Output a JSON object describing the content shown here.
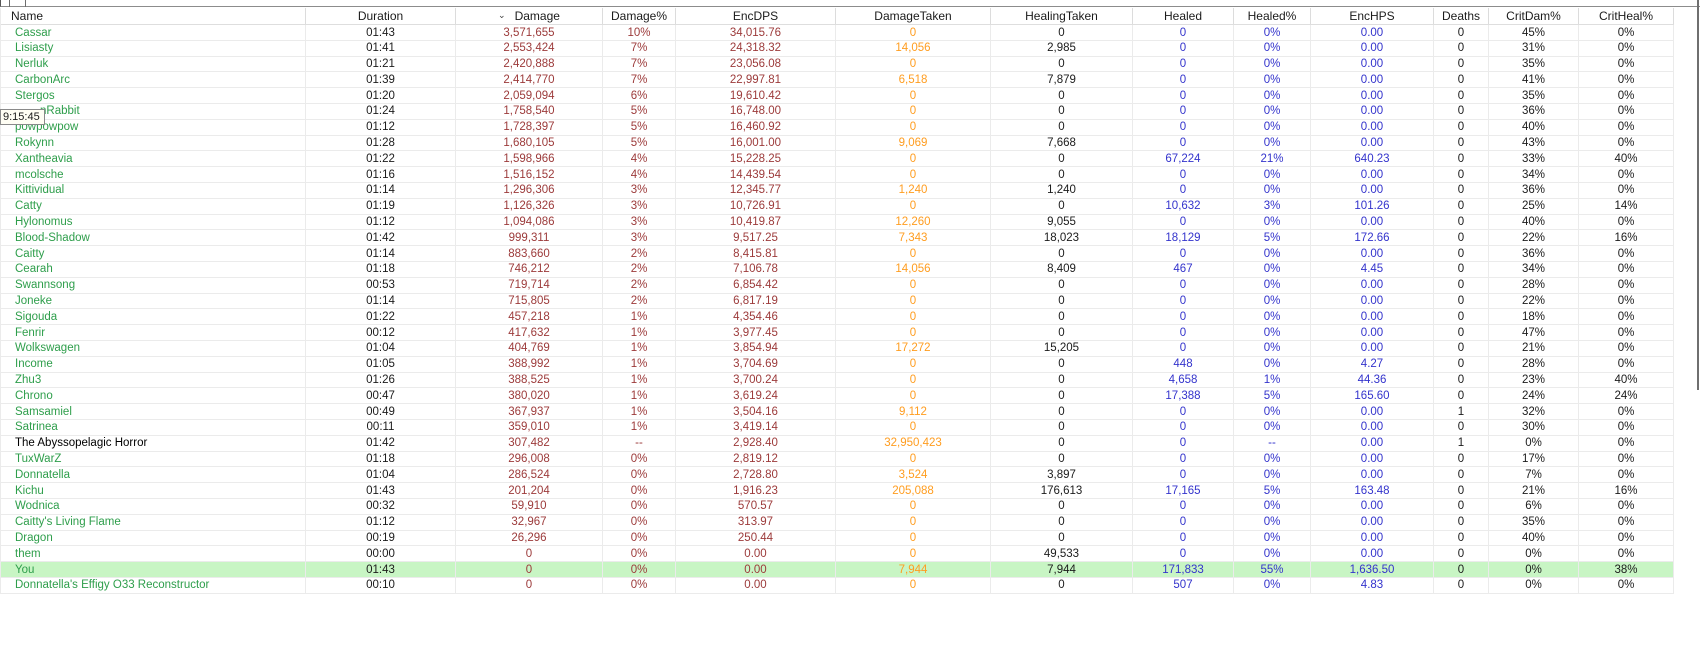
{
  "tooltip": {
    "text": "9:15:45"
  },
  "sort": {
    "column_index": 2,
    "icon": "⌄"
  },
  "colors": {
    "ally_name": "#2e9e4b",
    "enemy_name": "#000000",
    "damage": "#9c3a3a",
    "damage_taken": "#ff9d20",
    "healing": "#3333cc",
    "neutral_text": "#1b1b1b",
    "highlight_row_bg": "#c8f5c4",
    "grid_line": "#ebebeb",
    "header_line": "#dedede",
    "tooltip_bg": "#fffef4",
    "tooltip_border": "#8a8a8a"
  },
  "columns": [
    {
      "label": "Name"
    },
    {
      "label": "Duration"
    },
    {
      "label": "Damage"
    },
    {
      "label": "Damage%"
    },
    {
      "label": "EncDPS"
    },
    {
      "label": "DamageTaken"
    },
    {
      "label": "HealingTaken"
    },
    {
      "label": "Healed"
    },
    {
      "label": "Healed%"
    },
    {
      "label": "EncHPS"
    },
    {
      "label": "Deaths"
    },
    {
      "label": "CritDam%"
    },
    {
      "label": "CritHeal%"
    }
  ],
  "rows": [
    {
      "cells": [
        "Cassar",
        "01:43",
        "3,571,655",
        "10%",
        "34,015.76",
        "0",
        "0",
        "0",
        "0%",
        "0.00",
        "0",
        "45%",
        "0%"
      ]
    },
    {
      "cells": [
        "Lisiasty",
        "01:41",
        "2,553,424",
        "7%",
        "24,318.32",
        "14,056",
        "2,985",
        "0",
        "0%",
        "0.00",
        "0",
        "31%",
        "0%"
      ]
    },
    {
      "cells": [
        "Nerluk",
        "01:21",
        "2,420,888",
        "7%",
        "23,056.08",
        "0",
        "0",
        "0",
        "0%",
        "0.00",
        "0",
        "35%",
        "0%"
      ]
    },
    {
      "cells": [
        "CarbonArc",
        "01:39",
        "2,414,770",
        "7%",
        "22,997.81",
        "6,518",
        "7,879",
        "0",
        "0%",
        "0.00",
        "0",
        "41%",
        "0%"
      ]
    },
    {
      "cells": [
        "Stergos",
        "01:20",
        "2,059,094",
        "6%",
        "19,610.42",
        "0",
        "0",
        "0",
        "0%",
        "0.00",
        "0",
        "35%",
        "0%"
      ]
    },
    {
      "cells": [
        "nRabbit",
        "01:24",
        "1,758,540",
        "5%",
        "16,748.00",
        "0",
        "0",
        "0",
        "0%",
        "0.00",
        "0",
        "36%",
        "0%"
      ],
      "clipped": true
    },
    {
      "cells": [
        "powpowpow",
        "01:12",
        "1,728,397",
        "5%",
        "16,460.92",
        "0",
        "0",
        "0",
        "0%",
        "0.00",
        "0",
        "40%",
        "0%"
      ]
    },
    {
      "cells": [
        "Rokynn",
        "01:28",
        "1,680,105",
        "5%",
        "16,001.00",
        "9,069",
        "7,668",
        "0",
        "0%",
        "0.00",
        "0",
        "43%",
        "0%"
      ]
    },
    {
      "cells": [
        "Xantheavia",
        "01:22",
        "1,598,966",
        "4%",
        "15,228.25",
        "0",
        "0",
        "67,224",
        "21%",
        "640.23",
        "0",
        "33%",
        "40%"
      ]
    },
    {
      "cells": [
        "mcolsche",
        "01:16",
        "1,516,152",
        "4%",
        "14,439.54",
        "0",
        "0",
        "0",
        "0%",
        "0.00",
        "0",
        "34%",
        "0%"
      ]
    },
    {
      "cells": [
        "Kittividual",
        "01:14",
        "1,296,306",
        "3%",
        "12,345.77",
        "1,240",
        "1,240",
        "0",
        "0%",
        "0.00",
        "0",
        "36%",
        "0%"
      ]
    },
    {
      "cells": [
        "Catty",
        "01:19",
        "1,126,326",
        "3%",
        "10,726.91",
        "0",
        "0",
        "10,632",
        "3%",
        "101.26",
        "0",
        "25%",
        "14%"
      ]
    },
    {
      "cells": [
        "Hylonomus",
        "01:12",
        "1,094,086",
        "3%",
        "10,419.87",
        "12,260",
        "9,055",
        "0",
        "0%",
        "0.00",
        "0",
        "40%",
        "0%"
      ]
    },
    {
      "cells": [
        "Blood-Shadow",
        "01:42",
        "999,311",
        "3%",
        "9,517.25",
        "7,343",
        "18,023",
        "18,129",
        "5%",
        "172.66",
        "0",
        "22%",
        "16%"
      ]
    },
    {
      "cells": [
        "Caitty",
        "01:14",
        "883,660",
        "2%",
        "8,415.81",
        "0",
        "0",
        "0",
        "0%",
        "0.00",
        "0",
        "36%",
        "0%"
      ]
    },
    {
      "cells": [
        "Cearah",
        "01:18",
        "746,212",
        "2%",
        "7,106.78",
        "14,056",
        "8,409",
        "467",
        "0%",
        "4.45",
        "0",
        "34%",
        "0%"
      ]
    },
    {
      "cells": [
        "Swannsong",
        "00:53",
        "719,714",
        "2%",
        "6,854.42",
        "0",
        "0",
        "0",
        "0%",
        "0.00",
        "0",
        "28%",
        "0%"
      ]
    },
    {
      "cells": [
        "Joneke",
        "01:14",
        "715,805",
        "2%",
        "6,817.19",
        "0",
        "0",
        "0",
        "0%",
        "0.00",
        "0",
        "22%",
        "0%"
      ]
    },
    {
      "cells": [
        "Sigouda",
        "01:22",
        "457,218",
        "1%",
        "4,354.46",
        "0",
        "0",
        "0",
        "0%",
        "0.00",
        "0",
        "18%",
        "0%"
      ]
    },
    {
      "cells": [
        "Fenrir",
        "00:12",
        "417,632",
        "1%",
        "3,977.45",
        "0",
        "0",
        "0",
        "0%",
        "0.00",
        "0",
        "47%",
        "0%"
      ]
    },
    {
      "cells": [
        "Wolkswagen",
        "01:04",
        "404,769",
        "1%",
        "3,854.94",
        "17,272",
        "15,205",
        "0",
        "0%",
        "0.00",
        "0",
        "21%",
        "0%"
      ]
    },
    {
      "cells": [
        "Income",
        "01:05",
        "388,992",
        "1%",
        "3,704.69",
        "0",
        "0",
        "448",
        "0%",
        "4.27",
        "0",
        "28%",
        "0%"
      ]
    },
    {
      "cells": [
        "Zhu3",
        "01:26",
        "388,525",
        "1%",
        "3,700.24",
        "0",
        "0",
        "4,658",
        "1%",
        "44.36",
        "0",
        "23%",
        "40%"
      ]
    },
    {
      "cells": [
        "Chrono",
        "00:47",
        "380,020",
        "1%",
        "3,619.24",
        "0",
        "0",
        "17,388",
        "5%",
        "165.60",
        "0",
        "24%",
        "24%"
      ]
    },
    {
      "cells": [
        "Samsamiel",
        "00:49",
        "367,937",
        "1%",
        "3,504.16",
        "9,112",
        "0",
        "0",
        "0%",
        "0.00",
        "1",
        "32%",
        "0%"
      ]
    },
    {
      "cells": [
        "Satrinea",
        "00:11",
        "359,010",
        "1%",
        "3,419.14",
        "0",
        "0",
        "0",
        "0%",
        "0.00",
        "0",
        "30%",
        "0%"
      ]
    },
    {
      "cells": [
        "The Abyssopelagic Horror",
        "01:42",
        "307,482",
        "--",
        "2,928.40",
        "32,950,423",
        "0",
        "0",
        "--",
        "0.00",
        "1",
        "0%",
        "0%"
      ],
      "enemy": true
    },
    {
      "cells": [
        "TuxWarZ",
        "01:18",
        "296,008",
        "0%",
        "2,819.12",
        "0",
        "0",
        "0",
        "0%",
        "0.00",
        "0",
        "17%",
        "0%"
      ]
    },
    {
      "cells": [
        "Donnatella",
        "01:04",
        "286,524",
        "0%",
        "2,728.80",
        "3,524",
        "3,897",
        "0",
        "0%",
        "0.00",
        "0",
        "7%",
        "0%"
      ]
    },
    {
      "cells": [
        "Kichu",
        "01:43",
        "201,204",
        "0%",
        "1,916.23",
        "205,088",
        "176,613",
        "17,165",
        "5%",
        "163.48",
        "0",
        "21%",
        "16%"
      ]
    },
    {
      "cells": [
        "Wodnica",
        "00:32",
        "59,910",
        "0%",
        "570.57",
        "0",
        "0",
        "0",
        "0%",
        "0.00",
        "0",
        "6%",
        "0%"
      ]
    },
    {
      "cells": [
        "Caitty's Living Flame",
        "01:12",
        "32,967",
        "0%",
        "313.97",
        "0",
        "0",
        "0",
        "0%",
        "0.00",
        "0",
        "35%",
        "0%"
      ]
    },
    {
      "cells": [
        "Dragon",
        "00:19",
        "26,296",
        "0%",
        "250.44",
        "0",
        "0",
        "0",
        "0%",
        "0.00",
        "0",
        "40%",
        "0%"
      ]
    },
    {
      "cells": [
        "them",
        "00:00",
        "0",
        "0%",
        "0.00",
        "0",
        "49,533",
        "0",
        "0%",
        "0.00",
        "0",
        "0%",
        "0%"
      ]
    },
    {
      "cells": [
        "You",
        "01:43",
        "0",
        "0%",
        "0.00",
        "7,944",
        "7,944",
        "171,833",
        "55%",
        "1,636.50",
        "0",
        "0%",
        "38%"
      ],
      "highlight": true
    },
    {
      "cells": [
        "Donnatella's Effigy O33 Reconstructor",
        "00:10",
        "0",
        "0%",
        "0.00",
        "0",
        "0",
        "507",
        "0%",
        "4.83",
        "0",
        "0%",
        "0%"
      ]
    }
  ]
}
